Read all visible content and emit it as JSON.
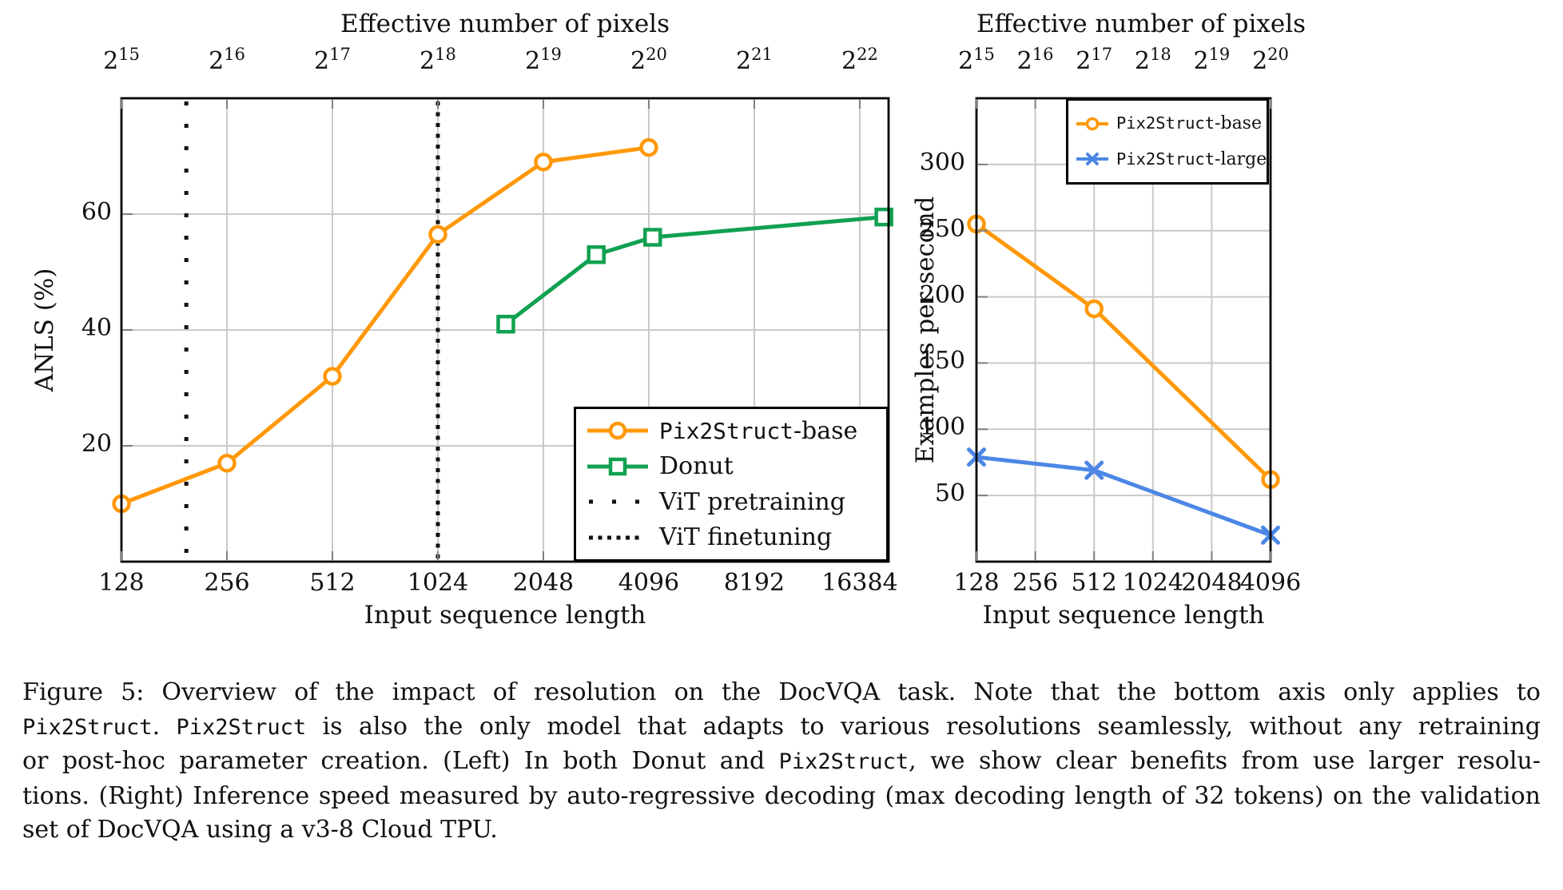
{
  "figure_label": "Figure 5:",
  "caption": {
    "lines": [
      {
        "justify_last": true,
        "segments": [
          {
            "text": "Figure 5:  Overview of the impact of resolution on the DocVQA task.  Note that the bottom axis only applies to"
          }
        ]
      },
      {
        "justify_last": true,
        "segments": [
          {
            "text": "Pix2Struct",
            "mono": true
          },
          {
            "text": ". "
          },
          {
            "text": "Pix2Struct",
            "mono": true
          },
          {
            "text": " is also the only model that adapts to various resolutions seamlessly, without any retraining"
          }
        ]
      },
      {
        "justify_last": true,
        "segments": [
          {
            "text": "or post-hoc parameter creation.  (Left) In both Donut and "
          },
          {
            "text": "Pix2Struct",
            "mono": true
          },
          {
            "text": ", we show clear benefits from use larger resolu-"
          }
        ]
      },
      {
        "justify_last": true,
        "segments": [
          {
            "text": "tions. (Right) Inference speed measured by auto-regressive decoding (max decoding length of 32 tokens) on the validation"
          }
        ]
      },
      {
        "justify_last": false,
        "segments": [
          {
            "text": "set of DocVQA using a v3-8 Cloud TPU."
          }
        ]
      }
    ]
  },
  "colors": {
    "orange": "#FF9808",
    "green": "#10A151",
    "blue": "#4C87E6",
    "gridline": "#c9c9c9",
    "tick": "#808080",
    "spine": "#000000",
    "dotted": "#111111"
  },
  "chart_data": [
    {
      "type": "line",
      "title_top": "Effective number of pixels",
      "xlabel": "Input sequence length",
      "ylabel": "ANLS (%)",
      "x_scale": "log2",
      "xlim": [
        128,
        19800
      ],
      "ylim": [
        0,
        80
      ],
      "x_ticks": [
        128,
        256,
        512,
        1024,
        2048,
        4096,
        8192,
        16384
      ],
      "y_ticks": [
        20,
        40,
        60
      ],
      "top_tick_base": "2",
      "top_tick_exponents": [
        15,
        16,
        17,
        18,
        19,
        20,
        21,
        22
      ],
      "series": [
        {
          "name": "Pix2Struct-base",
          "color": "#FF9808",
          "marker": "circle",
          "x": [
            128,
            256,
            512,
            1024,
            2048,
            4096
          ],
          "y": [
            10,
            17,
            32,
            56.5,
            69,
            71.5
          ]
        },
        {
          "name": "Donut",
          "color": "#10A151",
          "marker": "square",
          "x": [
            1600,
            2900,
            4200,
            19200
          ],
          "y": [
            41,
            53,
            56,
            59.5
          ]
        }
      ],
      "vlines": [
        {
          "name": "ViT pretraining",
          "x": 196,
          "style": "dotted-sparse",
          "color": "#111111"
        },
        {
          "name": "ViT finetuning",
          "x": 1024,
          "style": "dotted-dense",
          "color": "#111111"
        }
      ],
      "legend": [
        {
          "sample": "line-circle",
          "color": "#FF9808",
          "segments": [
            {
              "text": "Pix2Struct",
              "mono": true
            },
            {
              "text": "-base"
            }
          ]
        },
        {
          "sample": "line-square",
          "color": "#10A151",
          "segments": [
            {
              "text": "Donut"
            }
          ]
        },
        {
          "sample": "dots-sparse",
          "color": "#111111",
          "segments": [
            {
              "text": "ViT pretraining"
            }
          ]
        },
        {
          "sample": "dots-dense",
          "color": "#111111",
          "segments": [
            {
              "text": "ViT finetuning"
            }
          ]
        }
      ]
    },
    {
      "type": "line",
      "title_top": "Effective number of pixels",
      "xlabel": "Input sequence length",
      "ylabel": "Examples per second",
      "x_scale": "log2",
      "xlim": [
        128,
        4096
      ],
      "ylim": [
        0,
        350
      ],
      "x_ticks": [
        128,
        256,
        512,
        1024,
        2048,
        4096
      ],
      "y_ticks": [
        50,
        100,
        150,
        200,
        250,
        300
      ],
      "top_tick_base": "2",
      "top_tick_exponents": [
        15,
        16,
        17,
        18,
        19,
        20
      ],
      "series": [
        {
          "name": "Pix2Struct-base",
          "color": "#FF9808",
          "marker": "circle",
          "x": [
            128,
            512,
            4096
          ],
          "y": [
            255,
            191,
            62
          ]
        },
        {
          "name": "Pix2Struct-large",
          "color": "#4C87E6",
          "marker": "x",
          "x": [
            128,
            512,
            4096
          ],
          "y": [
            79,
            69,
            20
          ]
        }
      ],
      "vlines": [],
      "legend": [
        {
          "sample": "line-circle",
          "color": "#FF9808",
          "segments": [
            {
              "text": "Pix2Struct",
              "mono": true
            },
            {
              "text": "-base"
            }
          ]
        },
        {
          "sample": "line-x",
          "color": "#4C87E6",
          "segments": [
            {
              "text": "Pix2Struct",
              "mono": true
            },
            {
              "text": "-large"
            }
          ]
        }
      ]
    }
  ]
}
